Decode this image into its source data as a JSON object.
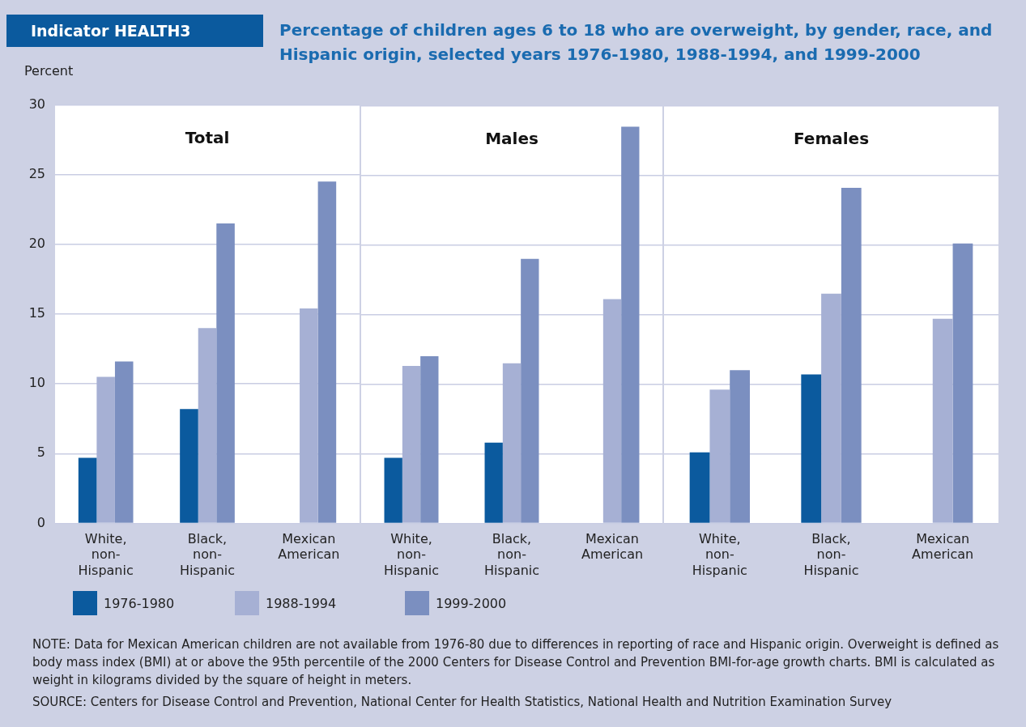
{
  "chart_data": [
    {
      "type": "bar",
      "title": "Total",
      "ylabel": "Percent",
      "categories": [
        "White, non-Hispanic",
        "Black, non-Hispanic",
        "Mexican American"
      ],
      "series": [
        {
          "name": "1976-1980",
          "color": "#0b5a9e",
          "values": [
            4.7,
            8.2,
            null
          ]
        },
        {
          "name": "1988-1994",
          "color": "#a6b0d4",
          "values": [
            10.5,
            14.0,
            15.4
          ]
        },
        {
          "name": "1999-2000",
          "color": "#7b8fc0",
          "values": [
            11.6,
            21.5,
            24.5
          ]
        }
      ],
      "ylim": [
        0,
        30
      ],
      "yticks": [
        0,
        5,
        10,
        15,
        20,
        25,
        30
      ],
      "grid": "y",
      "legend": "bottom",
      "annotations": [
        "Indicator HEALTH3",
        "Percentage of children ages 6 to 18 who are overweight, by gender, race, and Hispanic origin, selected years 1976-1980, 1988-1994, and 1999-2000",
        "NOTE: Data for Mexican American children are not available from 1976-80 due to differences in reporting of race and Hispanic origin. Overweight is defined as body mass index (BMI) at or above the 95th percentile of the 2000 Centers for Disease Control and Prevention BMI-for-age growth charts.  BMI is calculated as weight in kilograms divided by the square of height in meters.",
        "SOURCE: Centers for Disease Control and Prevention, National Center for Health Statistics, National Health and Nutrition Examination Survey"
      ]
    },
    {
      "type": "bar",
      "title": "Males",
      "categories": [
        "White, non-Hispanic",
        "Black, non-Hispanic",
        "Mexican American"
      ],
      "series": [
        {
          "color": "#0b5a9e",
          "values": [
            4.7,
            5.8,
            null
          ]
        },
        {
          "color": "#a6b0d4",
          "values": [
            11.3,
            11.5,
            16.1
          ]
        },
        {
          "color": "#7b8fc0",
          "values": [
            12.0,
            19.0,
            28.5
          ]
        }
      ],
      "ylim": [
        0,
        30
      ],
      "yticks": [
        0,
        5,
        10,
        15,
        20,
        25,
        30
      ],
      "grid": "y",
      "tick_labels": "x"
    },
    {
      "type": "bar",
      "title": "Females",
      "categories": [
        "White, non-Hispanic",
        "Black, non-Hispanic",
        "Mexican American"
      ],
      "series": [
        {
          "color": "#0b5a9e",
          "values": [
            5.1,
            10.7,
            null
          ]
        },
        {
          "color": "#a6b0d4",
          "values": [
            9.6,
            16.5,
            14.7
          ]
        },
        {
          "color": "#7b8fc0",
          "values": [
            11.0,
            24.1,
            20.1
          ]
        }
      ],
      "ylim": [
        0,
        30
      ],
      "yticks": [
        0,
        5,
        10,
        15,
        20,
        25,
        30
      ],
      "grid": "y",
      "tick_labels": "x"
    }
  ]
}
